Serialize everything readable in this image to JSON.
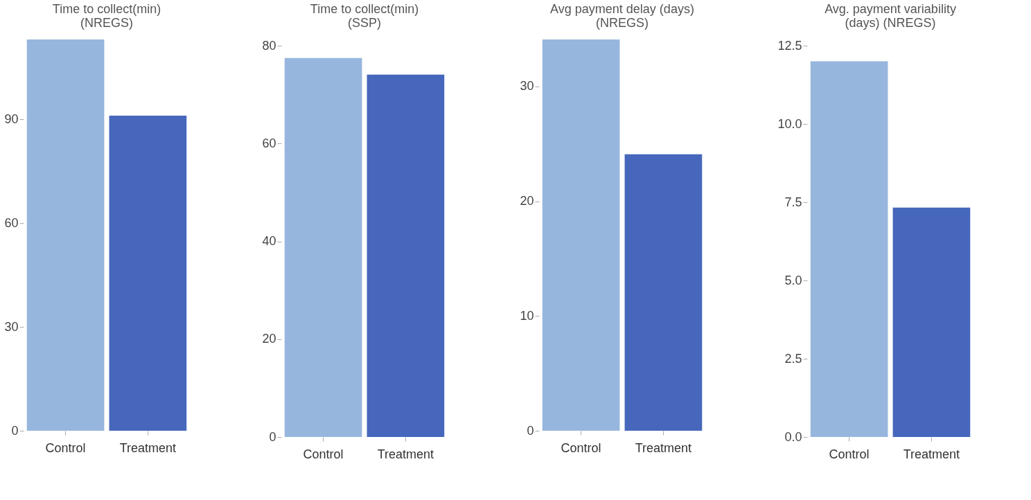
{
  "chart_data": [
    {
      "type": "bar",
      "title": "Time to collect(min)\n(NREGS)",
      "categories": [
        "Control",
        "Treatment"
      ],
      "values": [
        113,
        91
      ],
      "colors": [
        "#97b6de",
        "#4667bb"
      ],
      "ylim": [
        0,
        113
      ],
      "yticks": [
        0,
        30,
        60,
        90
      ],
      "grid": false,
      "legend": false
    },
    {
      "type": "bar",
      "title": "Time to collect(min)\n(SSP)",
      "categories": [
        "Control",
        "Treatment"
      ],
      "values": [
        77.5,
        74.1
      ],
      "colors": [
        "#97b6de",
        "#4667bb"
      ],
      "ylim": [
        0,
        80
      ],
      "yticks": [
        0,
        20,
        40,
        60,
        80
      ],
      "grid": false,
      "legend": false
    },
    {
      "type": "bar",
      "title": "Avg payment delay (days)\n(NREGS)",
      "categories": [
        "Control",
        "Treatment"
      ],
      "values": [
        34.1,
        24.1
      ],
      "colors": [
        "#97b6de",
        "#4667bb"
      ],
      "ylim": [
        0,
        34.1
      ],
      "yticks": [
        0,
        10,
        20,
        30
      ],
      "grid": false,
      "legend": false
    },
    {
      "type": "bar",
      "title": "Avg. payment variability\n(days) (NREGS)",
      "categories": [
        "Control",
        "Treatment"
      ],
      "values": [
        12,
        7.33
      ],
      "colors": [
        "#97b6de",
        "#4667bb"
      ],
      "ylim": [
        0,
        12.5
      ],
      "yticks": [
        {
          "value": 0,
          "label": "0.0"
        },
        2.5,
        {
          "value": 5,
          "label": "5.0"
        },
        7.5,
        {
          "value": 10,
          "label": "10.0"
        },
        12.5
      ],
      "grid": false,
      "legend": false
    }
  ]
}
